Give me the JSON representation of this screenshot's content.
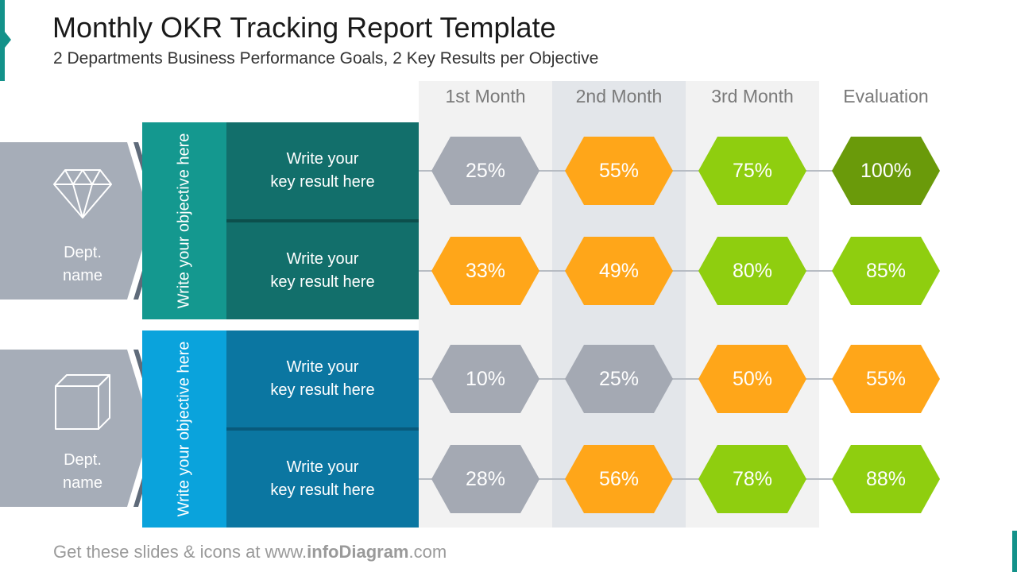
{
  "title": "Monthly OKR Tracking Report Template",
  "subtitle": "2 Departments Business Performance Goals, 2 Key Results per Objective",
  "columns": [
    "1st Month",
    "2nd Month",
    "3rd Month",
    "Evaluation"
  ],
  "colors": {
    "gray": "#a4a9b3",
    "orange": "#ffa619",
    "lime": "#8fce0f",
    "dark_green": "#6a9a0a",
    "teal_objective": "#14988f",
    "teal_key_result": "#126f6b",
    "blue_objective": "#0aa3dc",
    "blue_key_result": "#0b76a1",
    "dept_chevron": "#a6adb8"
  },
  "departments": [
    {
      "icon": "diamond-icon",
      "label_line1": "Dept.",
      "label_line2": "name",
      "objective": "Write your objective here",
      "key_results": [
        {
          "line1": "Write your",
          "line2": "key result here",
          "values": [
            {
              "text": "25%",
              "color": "gray"
            },
            {
              "text": "55%",
              "color": "orange"
            },
            {
              "text": "75%",
              "color": "lime"
            },
            {
              "text": "100%",
              "color": "dark_green"
            }
          ]
        },
        {
          "line1": "Write your",
          "line2": "key result here",
          "values": [
            {
              "text": "33%",
              "color": "orange"
            },
            {
              "text": "49%",
              "color": "orange"
            },
            {
              "text": "80%",
              "color": "lime"
            },
            {
              "text": "85%",
              "color": "lime"
            }
          ]
        }
      ]
    },
    {
      "icon": "box-icon",
      "label_line1": "Dept.",
      "label_line2": "name",
      "objective": "Write your objective here",
      "key_results": [
        {
          "line1": "Write your",
          "line2": "key result here",
          "values": [
            {
              "text": "10%",
              "color": "gray"
            },
            {
              "text": "25%",
              "color": "gray"
            },
            {
              "text": "50%",
              "color": "orange"
            },
            {
              "text": "55%",
              "color": "orange"
            }
          ]
        },
        {
          "line1": "Write your",
          "line2": "key result here",
          "values": [
            {
              "text": "28%",
              "color": "gray"
            },
            {
              "text": "56%",
              "color": "orange"
            },
            {
              "text": "78%",
              "color": "lime"
            },
            {
              "text": "88%",
              "color": "lime"
            }
          ]
        }
      ]
    }
  ],
  "footer": {
    "prefix": "Get these slides & icons at www.",
    "brand": "infoDiagram",
    "suffix": ".com"
  }
}
